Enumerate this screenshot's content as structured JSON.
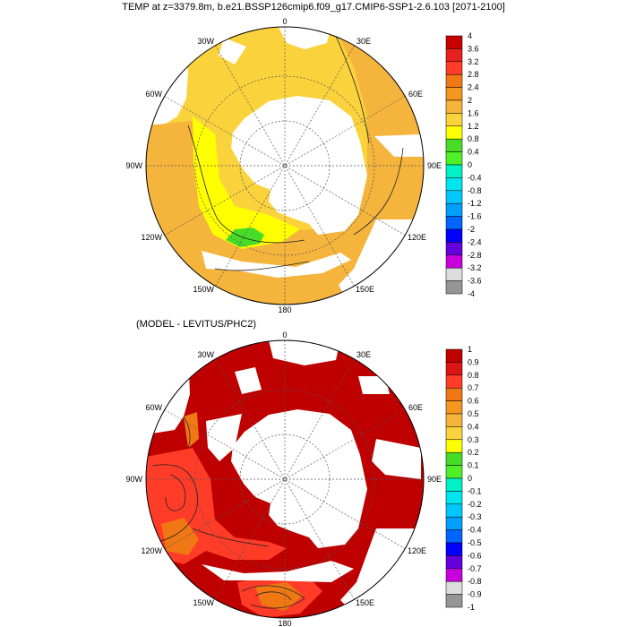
{
  "title": "TEMP at z=3379.8m, b.e21.BSSP126cmip6.f09_g17.CMIP6-SSP1-2.6.103 [2071-2100]",
  "subtitle": "(MODEL - LEVITUS/PHC2)",
  "longitude_labels": {
    "top": "0",
    "e30": "30E",
    "e60": "60E",
    "e90": "90E",
    "e120": "120E",
    "e150": "150E",
    "bottom": "180",
    "w150": "150W",
    "w120": "120W",
    "w90": "90W",
    "w60": "60W",
    "w30": "30W"
  },
  "colorbars": [
    {
      "labels": [
        "4",
        "3.6",
        "3.2",
        "2.8",
        "2.4",
        "2",
        "1.6",
        "1.2",
        "0.8",
        "0.4",
        "0",
        "-0.4",
        "-0.8",
        "-1.2",
        "-1.6",
        "-2",
        "-2.4",
        "-2.8",
        "-3.2",
        "-3.6",
        "-4"
      ],
      "colors": [
        "#c80000",
        "#e82020",
        "#ff3c28",
        "#f07814",
        "#f5961e",
        "#f5b43c",
        "#fad23c",
        "#ffff00",
        "#46dc28",
        "#50f028",
        "#00f0c8",
        "#00e6f0",
        "#00c8ff",
        "#00a0ff",
        "#0064ff",
        "#0000ff",
        "#6400dc",
        "#c800dc",
        "#dcdcdc",
        "#969696"
      ]
    },
    {
      "labels": [
        "1",
        "0.9",
        "0.8",
        "0.7",
        "0.6",
        "0.5",
        "0.4",
        "0.3",
        "0.2",
        "0.1",
        "0",
        "-0.1",
        "-0.2",
        "-0.3",
        "-0.4",
        "-0.5",
        "-0.6",
        "-0.7",
        "-0.8",
        "-0.9",
        "-1"
      ],
      "colors": [
        "#be0000",
        "#dc1414",
        "#ff3c28",
        "#f07814",
        "#f5961e",
        "#f5b43c",
        "#fad23c",
        "#ffff00",
        "#46dc28",
        "#50f028",
        "#00f0c8",
        "#00e6f0",
        "#00c8ff",
        "#00a0ff",
        "#0064ff",
        "#0000ff",
        "#6400dc",
        "#c800dc",
        "#dcdcdc",
        "#969696"
      ]
    }
  ],
  "field_colors": {
    "top_main": "#fad23c",
    "top_outer": "#f5b43c",
    "top_yellow": "#ffff00",
    "top_green": "#46dc28",
    "bottom_main": "#be0000",
    "bottom_red": "#ff3c28",
    "bottom_orange": "#f07814",
    "land_mask": "#ffffff"
  }
}
